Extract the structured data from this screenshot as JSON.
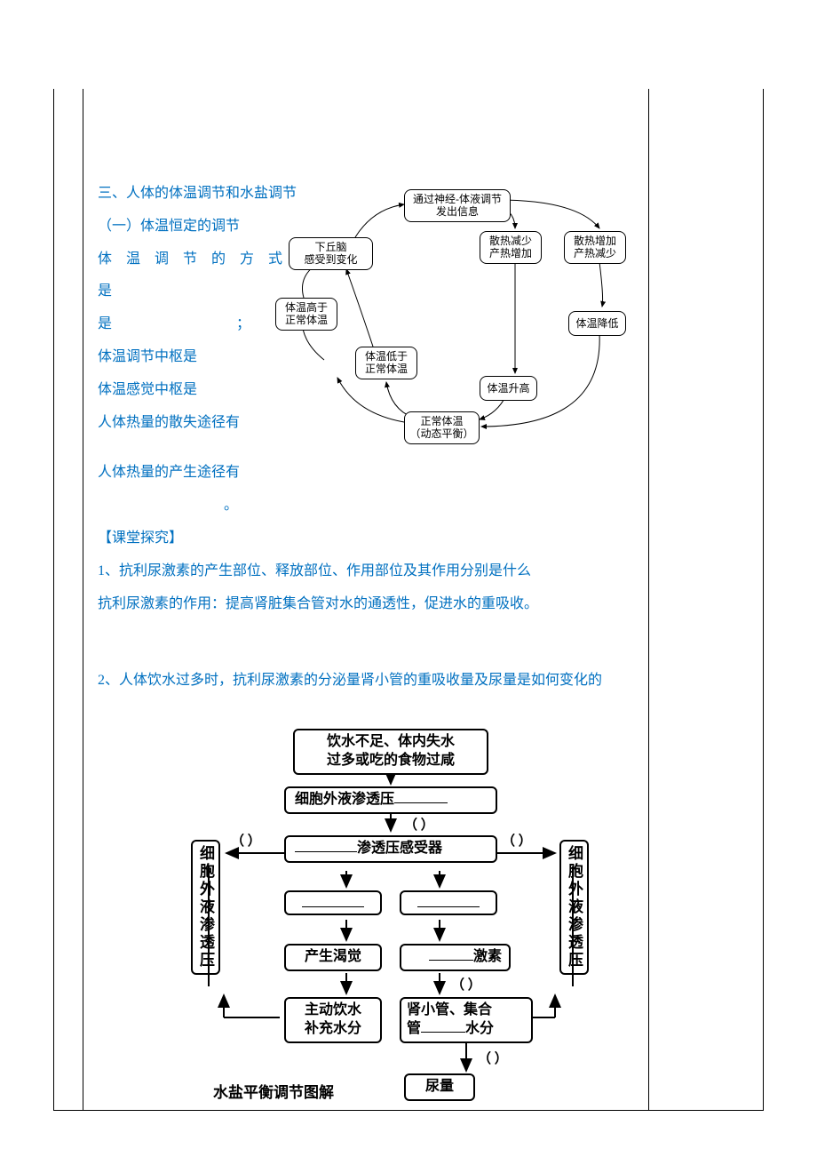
{
  "section": {
    "title": "三、人体的体温调节和水盐调节",
    "sub1_title": "（一）体温恒定的调节",
    "lines": [
      "体 温 调 节 的 方 式 是",
      "体温调节中枢是",
      "体温感觉中枢是",
      "人体热量的散失途径有",
      "人体热量的产生途径有"
    ],
    "blank_sep": "；",
    "period": "。"
  },
  "inquiry": {
    "header": "【课堂探究】",
    "q1_line1": "1、抗利尿激素的产生部位、释放部位、作用部位及其作用分别是什么",
    "q1_line2": "抗利尿激素的作用：提高肾脏集合管对水的通透性，促进水的重吸收。",
    "q2": "2、人体饮水过多时，抗利尿激素的分泌量肾小管的重吸收量及尿量是如何变化的"
  },
  "diag1": {
    "n_top": "通过神经-体液调节\n发出信息",
    "n_hypoth": "下丘脑\n感受到变化",
    "n_less_heat": "散热减少\n产热增加",
    "n_more_heat": "散热增加\n产热减少",
    "n_high": "体温高于\n正常体温",
    "n_low": "体温低于\n正常体温",
    "n_drop": "体温降低",
    "n_rise": "体温升高",
    "n_normal": "正常体温\n（动态平衡）"
  },
  "diag2": {
    "top": "饮水不足、体内失水\n过多或吃的食物过咸",
    "osm": "细胞外液渗透压______",
    "recep": "_______渗透压感受器",
    "thirst": "产生渴觉",
    "hormone": "______激素",
    "drink": "主动饮水\n补充水分",
    "tubule": "肾小管、集合管______水分",
    "urine": "尿量",
    "side": "细胞外液渗透压",
    "caption": "水盐平衡调节图解",
    "paren": "（      ）"
  }
}
